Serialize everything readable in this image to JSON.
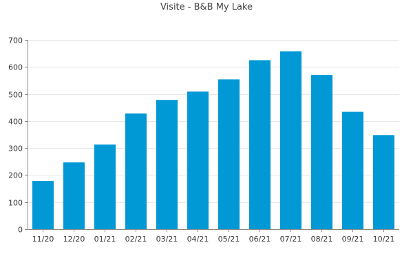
{
  "chart_data": {
    "type": "bar",
    "title": "Visite - B&B My Lake",
    "xlabel": "",
    "ylabel": "",
    "categories": [
      "11/20",
      "12/20",
      "01/21",
      "02/21",
      "03/21",
      "04/21",
      "05/21",
      "06/21",
      "07/21",
      "08/21",
      "09/21",
      "10/21"
    ],
    "values": [
      178,
      247,
      313,
      428,
      478,
      509,
      554,
      625,
      658,
      570,
      434,
      348
    ],
    "ylim": [
      0,
      700
    ],
    "yticks": [
      0,
      100,
      200,
      300,
      400,
      500,
      600,
      700
    ],
    "grid": true,
    "legend": "none",
    "bar_color": "#0099d6",
    "grid_color": "#e6e6e6",
    "axis_color": "#888888",
    "text_color": "#333333"
  }
}
